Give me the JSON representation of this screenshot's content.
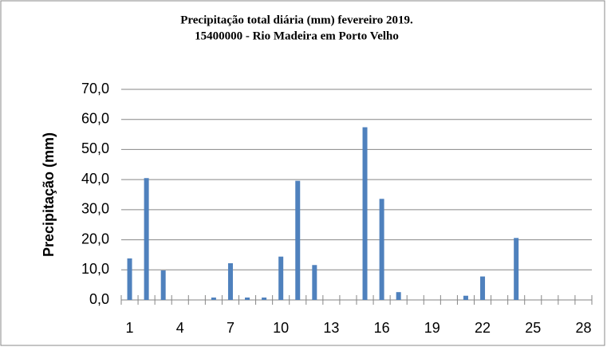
{
  "chart_data": {
    "type": "bar",
    "title": [
      "Precipitação total diária (mm) fevereiro 2019.",
      "15400000  - Rio Madeira em Porto Velho"
    ],
    "y_label": "Precipitação (mm)",
    "categories": [
      "1",
      null,
      null,
      "4",
      null,
      null,
      "7",
      null,
      null,
      "10",
      null,
      null,
      "13",
      null,
      null,
      "16",
      null,
      null,
      "19",
      null,
      null,
      "22",
      null,
      null,
      "25",
      null,
      null,
      "28"
    ],
    "values": [
      13.8,
      40.5,
      9.8,
      0,
      0,
      0.8,
      12.2,
      0.8,
      0.8,
      14.4,
      39.6,
      11.6,
      0,
      0,
      57.4,
      33.6,
      2.6,
      0,
      0,
      0,
      1.4,
      7.8,
      0,
      20.6,
      0,
      0,
      0,
      0
    ],
    "color": "#4f81bd",
    "ylim": [
      0,
      70
    ],
    "yticks": [
      {
        "value": 0,
        "label": "0,0"
      },
      {
        "value": 10,
        "label": "10,0"
      },
      {
        "value": 20,
        "label": "20,0"
      },
      {
        "value": 30,
        "label": "30,0"
      },
      {
        "value": 40,
        "label": "40,0"
      },
      {
        "value": 50,
        "label": "50,0"
      },
      {
        "value": 60,
        "label": "60,0"
      },
      {
        "value": 70,
        "label": "70,0"
      }
    ],
    "grid": true
  }
}
